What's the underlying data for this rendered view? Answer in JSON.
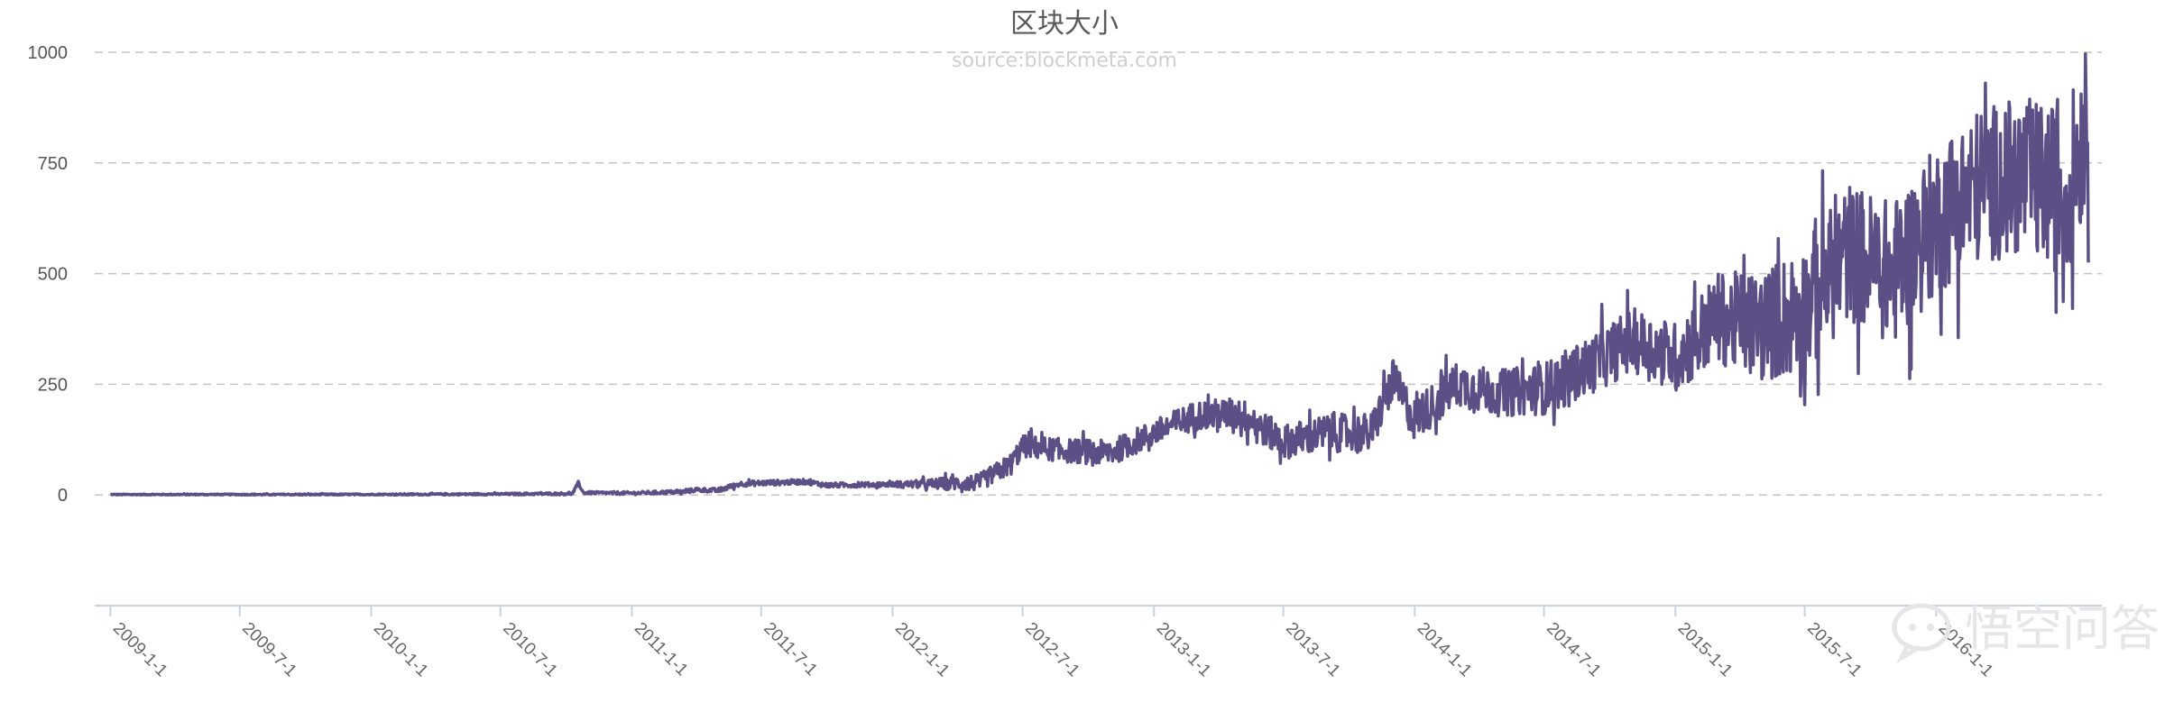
{
  "chart_data": {
    "type": "line",
    "title": "区块大小",
    "subtitle": "source:blockmeta.com",
    "xlabel": "",
    "ylabel": "",
    "ylim": [
      -250,
      1000
    ],
    "yticks": [
      0,
      250,
      500,
      750,
      1000
    ],
    "x_range": [
      "2008-12-10",
      "2016-08-20"
    ],
    "x_tick_labels": [
      "2009-1-1",
      "2009-7-1",
      "2010-1-1",
      "2010-7-1",
      "2011-1-1",
      "2011-7-1",
      "2012-1-1",
      "2012-7-1",
      "2013-1-1",
      "2013-7-1",
      "2014-1-1",
      "2014-7-1",
      "2015-1-1",
      "2015-7-1",
      "2016-1-1"
    ],
    "x_tick_dates": [
      "2009-01-01",
      "2009-07-01",
      "2010-01-01",
      "2010-07-01",
      "2011-01-01",
      "2011-07-01",
      "2012-01-01",
      "2012-07-01",
      "2013-01-01",
      "2013-07-01",
      "2014-01-01",
      "2014-07-01",
      "2015-01-01",
      "2015-07-01",
      "2016-01-01"
    ],
    "grid": true,
    "legend": "none",
    "series": [
      {
        "color": "#5b4f86",
        "points": [
          [
            "2009-01-01",
            1
          ],
          [
            "2009-07-01",
            1
          ],
          [
            "2010-01-01",
            1
          ],
          [
            "2010-07-01",
            2
          ],
          [
            "2010-10-10",
            3
          ],
          [
            "2010-10-18",
            28
          ],
          [
            "2010-10-25",
            5
          ],
          [
            "2011-01-01",
            4
          ],
          [
            "2011-03-15",
            7
          ],
          [
            "2011-04-01",
            12
          ],
          [
            "2011-05-01",
            10
          ],
          [
            "2011-06-01",
            25
          ],
          [
            "2011-07-01",
            27
          ],
          [
            "2011-09-01",
            30
          ],
          [
            "2011-10-01",
            22
          ],
          [
            "2012-01-01",
            24
          ],
          [
            "2012-03-01",
            25
          ],
          [
            "2012-05-01",
            28
          ],
          [
            "2012-06-15",
            70
          ],
          [
            "2012-07-01",
            110
          ],
          [
            "2012-09-01",
            100
          ],
          [
            "2012-11-01",
            95
          ],
          [
            "2013-01-01",
            140
          ],
          [
            "2013-03-01",
            180
          ],
          [
            "2013-05-01",
            185
          ],
          [
            "2013-07-01",
            120
          ],
          [
            "2013-09-01",
            140
          ],
          [
            "2013-11-01",
            140
          ],
          [
            "2013-12-01",
            260
          ],
          [
            "2014-01-01",
            170
          ],
          [
            "2014-03-01",
            250
          ],
          [
            "2014-05-01",
            230
          ],
          [
            "2014-07-01",
            240
          ],
          [
            "2014-09-01",
            290
          ],
          [
            "2014-11-01",
            350
          ],
          [
            "2015-01-01",
            310
          ],
          [
            "2015-03-01",
            400
          ],
          [
            "2015-05-01",
            380
          ],
          [
            "2015-07-01",
            420
          ],
          [
            "2015-09-01",
            550
          ],
          [
            "2015-11-01",
            500
          ],
          [
            "2016-01-01",
            620
          ],
          [
            "2016-03-01",
            700
          ],
          [
            "2016-05-01",
            720
          ],
          [
            "2016-07-01",
            680
          ],
          [
            "2016-08-01",
            850
          ]
        ],
        "noise": [
          [
            "2009-01-01",
            1
          ],
          [
            "2010-07-01",
            2
          ],
          [
            "2011-03-01",
            4
          ],
          [
            "2011-07-01",
            6
          ],
          [
            "2012-01-01",
            5
          ],
          [
            "2012-06-20",
            25
          ],
          [
            "2013-01-01",
            30
          ],
          [
            "2013-11-01",
            45
          ],
          [
            "2014-06-01",
            55
          ],
          [
            "2015-01-01",
            80
          ],
          [
            "2015-07-01",
            150
          ],
          [
            "2016-01-01",
            170
          ],
          [
            "2016-08-01",
            190
          ]
        ]
      }
    ]
  },
  "watermark": {
    "icon": "chat-bubble-icon",
    "text": "悟空问答"
  }
}
